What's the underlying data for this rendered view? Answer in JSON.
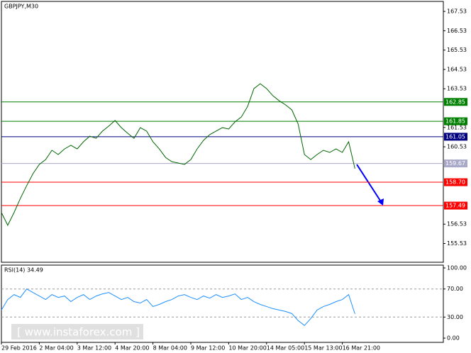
{
  "chart_data": [
    {
      "type": "line",
      "title": "GBPJPY,M30",
      "color": "#006400",
      "categories": [
        "29 Feb 2016",
        null,
        null,
        null,
        null,
        null,
        "2 Mar 04:00",
        null,
        null,
        null,
        null,
        null,
        "3 Mar 12:00",
        null,
        null,
        null,
        null,
        null,
        "4 Mar 20:00",
        null,
        null,
        null,
        null,
        null,
        "8 Mar 04:00",
        null,
        null,
        null,
        null,
        null,
        "9 Mar 12:00",
        null,
        null,
        null,
        null,
        null,
        "10 Mar 20:00",
        null,
        null,
        null,
        null,
        null,
        "14 Mar 05:00",
        null,
        null,
        null,
        null,
        null,
        "15 Mar 13:00",
        null,
        null,
        null,
        null,
        null,
        "16 Mar 21:00",
        null,
        null
      ],
      "values": [
        157.13,
        156.47,
        157.13,
        157.86,
        158.52,
        159.14,
        159.62,
        159.87,
        160.35,
        160.13,
        160.42,
        160.61,
        160.42,
        160.79,
        161.08,
        160.97,
        161.34,
        161.6,
        161.89,
        161.52,
        161.23,
        160.97,
        161.52,
        161.34,
        160.79,
        160.42,
        159.98,
        159.76,
        159.69,
        159.62,
        159.87,
        160.42,
        160.86,
        161.16,
        161.34,
        161.52,
        161.45,
        161.82,
        162.07,
        162.62,
        163.54,
        163.79,
        163.54,
        163.17,
        162.91,
        162.7,
        162.44,
        161.71,
        160.13,
        159.87,
        160.13,
        160.35,
        160.24,
        160.42,
        160.24,
        160.79,
        159.4
      ],
      "ylim": [
        154.56,
        168.01
      ],
      "yticks": [
        167.53,
        166.53,
        165.53,
        164.53,
        163.53,
        161.53,
        160.53,
        156.53,
        155.53
      ],
      "levels": [
        {
          "value": 162.85,
          "color": "#008000"
        },
        {
          "value": 161.85,
          "color": "#008000"
        },
        {
          "value": 161.05,
          "color": "#000080"
        },
        {
          "value": 159.67,
          "color": "#a8a8c8"
        },
        {
          "value": {
            "value": 158.7,
            "label": "158.70"
          },
          "color": "#ff0000"
        },
        {
          "value": 157.49,
          "color": "#ff0000"
        }
      ]
    },
    {
      "type": "line",
      "title": "RSI(14) 34.49",
      "color": "#1e90ff",
      "values": [
        40,
        55,
        62,
        58,
        70,
        65,
        60,
        55,
        62,
        58,
        60,
        52,
        58,
        62,
        55,
        60,
        63,
        65,
        60,
        55,
        58,
        52,
        50,
        55,
        45,
        48,
        52,
        55,
        60,
        62,
        58,
        55,
        60,
        57,
        62,
        58,
        60,
        63,
        55,
        58,
        52,
        48,
        45,
        42,
        40,
        38,
        35,
        25,
        18,
        28,
        40,
        45,
        48,
        52,
        55,
        62,
        34.49
      ],
      "ylim": [
        0,
        100
      ],
      "yticks": [
        {
          "value": 100,
          "label": "100.00"
        },
        {
          "value": 70,
          "label": "70.00"
        },
        {
          "value": 30,
          "label": "30.00"
        },
        {
          "value": 0,
          "label": "0.00"
        }
      ]
    }
  ],
  "watermark": "[  www.instaforex.com  ]"
}
